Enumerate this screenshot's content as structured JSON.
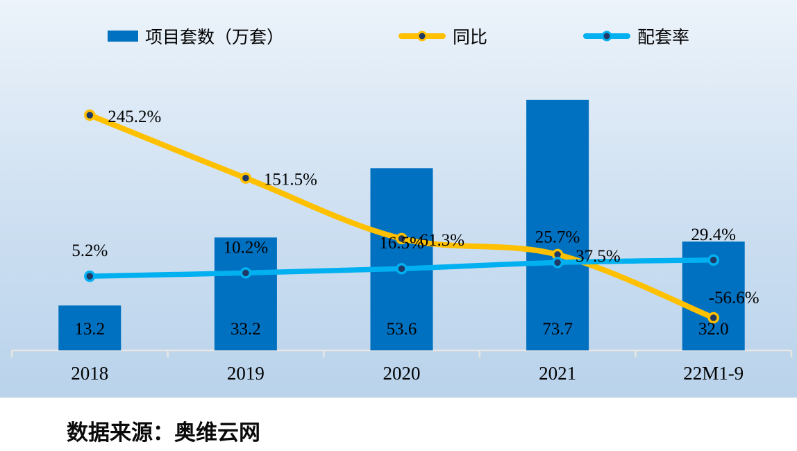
{
  "legend": {
    "items": [
      {
        "label": "项目套数（万套）",
        "marker": "bar-swatch"
      },
      {
        "label": "同比",
        "marker": "line-dot"
      },
      {
        "label": "配套率",
        "marker": "line-dot"
      }
    ]
  },
  "colors": {
    "bar": "#0070C0",
    "yoy_line": "#FFC000",
    "rate_line": "#00B0F0",
    "marker_dot": "#1F3864",
    "axis": "#E9E6E2",
    "bg_top": "#ECF3FA",
    "bg_bottom": "#B9D3EB"
  },
  "chart_data": {
    "type": "bar",
    "subtype": "bar-line-combo",
    "categories": [
      "2018",
      "2019",
      "2020",
      "2021",
      "22M1-9"
    ],
    "series": [
      {
        "name": "项目套数（万套）",
        "type": "bar",
        "axis": "primary",
        "values": [
          13.2,
          33.2,
          53.6,
          73.7,
          32.0
        ],
        "labels": [
          "13.2",
          "33.2",
          "53.6",
          "73.7",
          "32.0"
        ],
        "color": "#0070C0"
      },
      {
        "name": "同比",
        "type": "line",
        "axis": "secondary",
        "values": [
          245.2,
          151.5,
          61.3,
          37.5,
          -56.6
        ],
        "labels": [
          "245.2%",
          "151.5%",
          "61.3%",
          "37.5%",
          "-56.6%"
        ],
        "color": "#FFC000"
      },
      {
        "name": "配套率",
        "type": "line",
        "axis": "secondary",
        "values": [
          5.2,
          10.2,
          16.5,
          25.7,
          29.4
        ],
        "labels": [
          "5.2%",
          "10.2%",
          "16.5%",
          "25.7%",
          "29.4%"
        ],
        "color": "#00B0F0"
      }
    ],
    "title": "",
    "xlabel": "",
    "ylabel": "",
    "grid": false,
    "legend_position": "top",
    "marker_color": "#1F3864",
    "background": "light-blue-gradient"
  },
  "source": {
    "text": "数据来源：奥维云网"
  }
}
